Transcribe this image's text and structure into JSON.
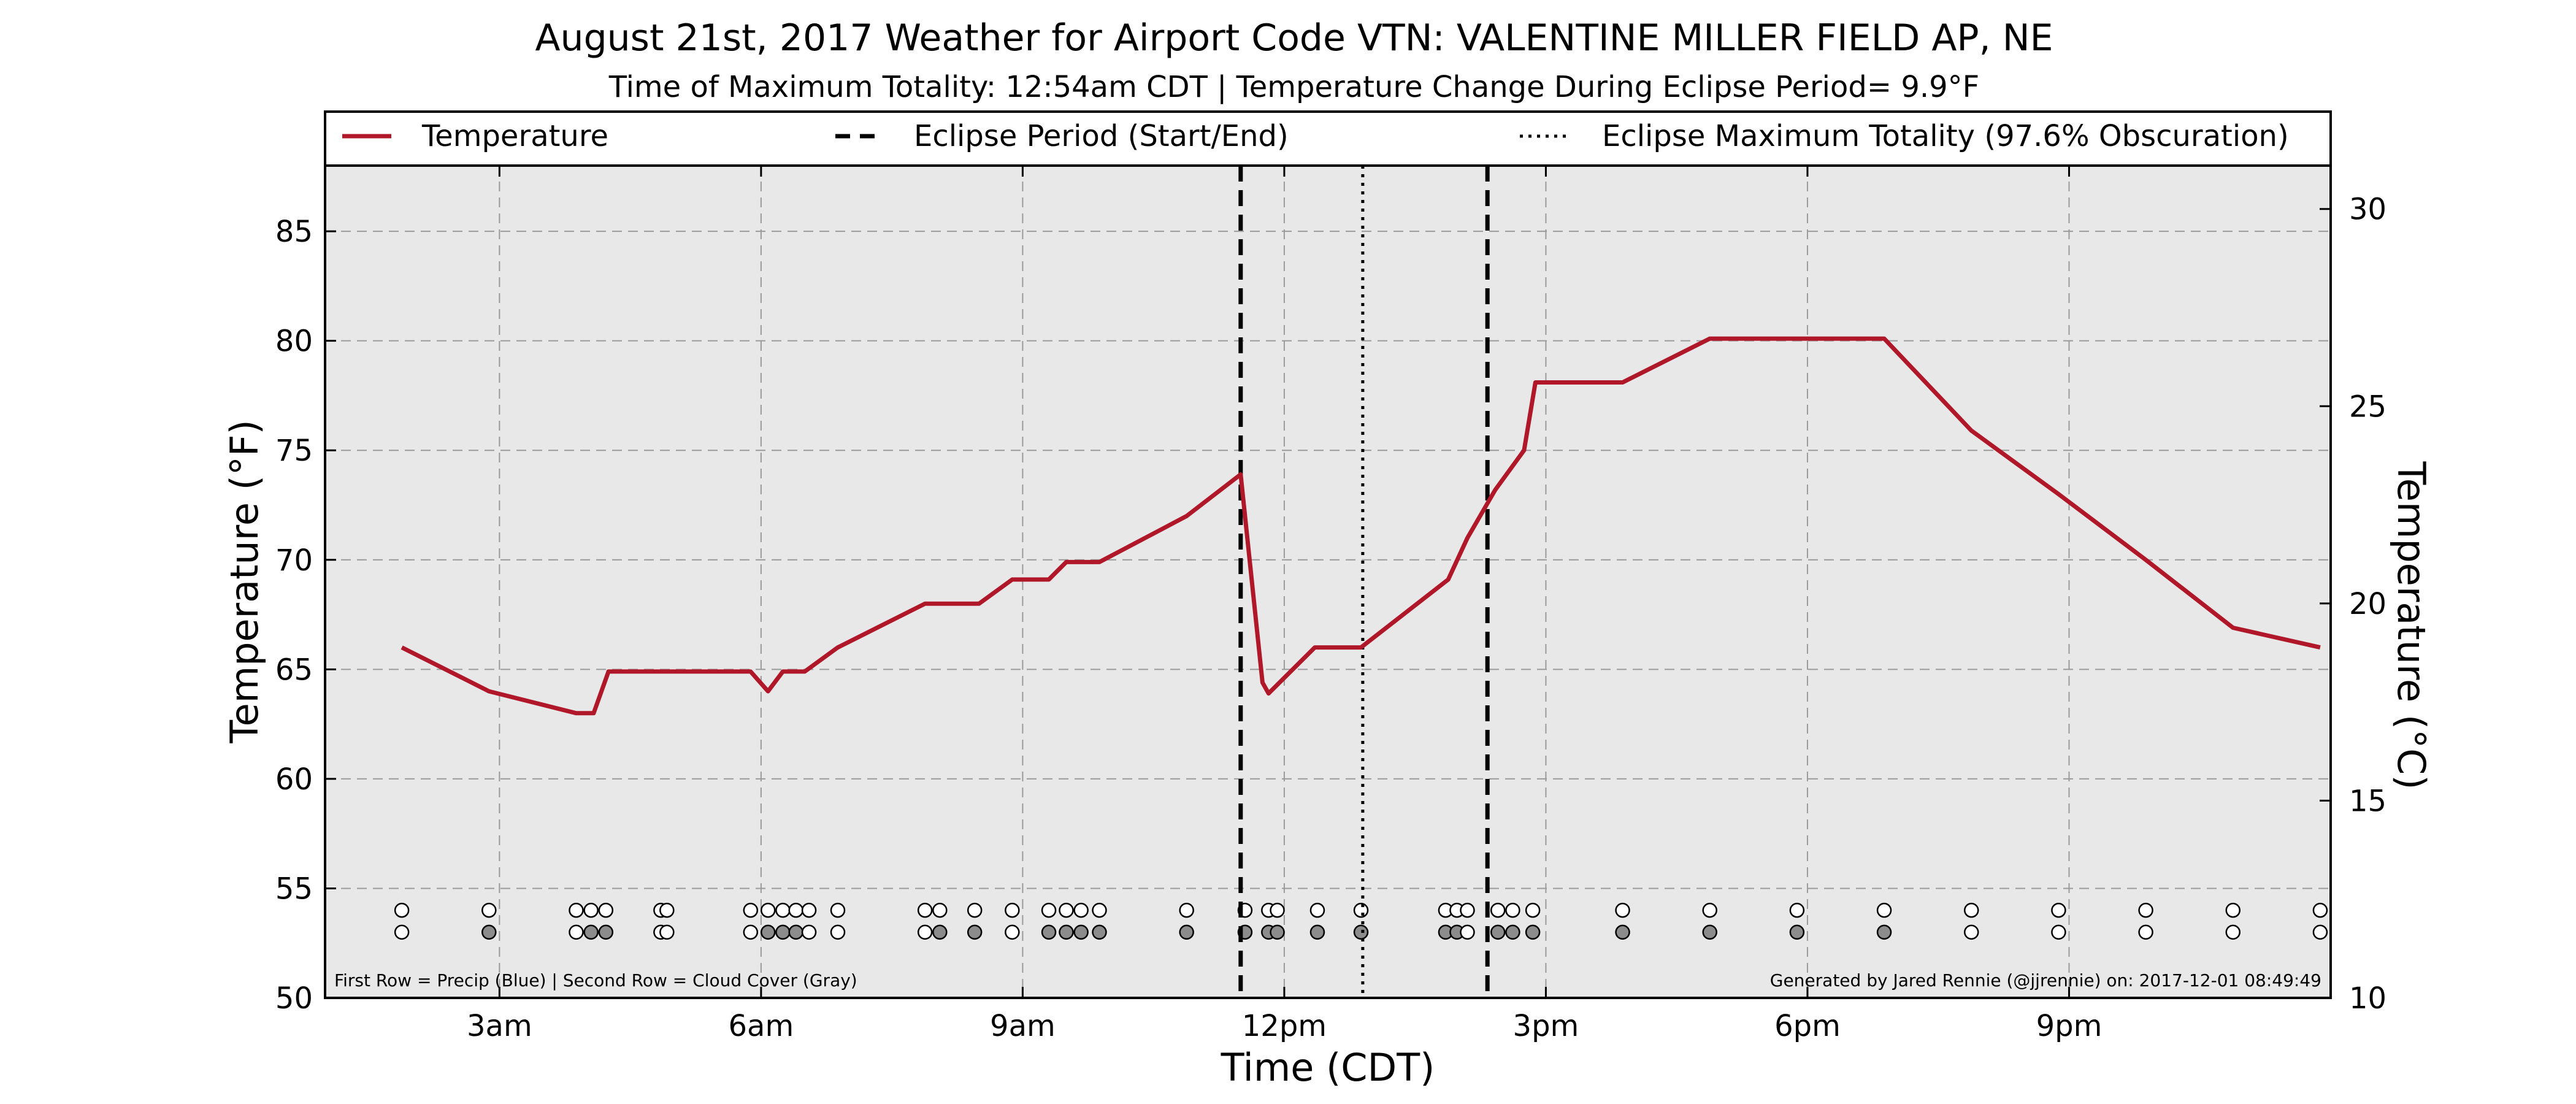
{
  "chart_data": {
    "type": "line",
    "title": "August 21st, 2017 Weather for Airport Code VTN: VALENTINE MILLER FIELD AP, NE",
    "subtitle": "Time of Maximum Totality: 12:54am CDT | Temperature Change During Eclipse Period= 9.9°F",
    "xlabel": "Time (CDT)",
    "ylabel": "Temperature (°F)",
    "ylabel_right": "Temperature (°C)",
    "xlim": [
      1.0,
      24.0
    ],
    "ylim": [
      50,
      88
    ],
    "ylim_right_c": [
      10,
      31.1
    ],
    "x_ticks": [
      {
        "x": 3,
        "label": "3am"
      },
      {
        "x": 6,
        "label": "6am"
      },
      {
        "x": 9,
        "label": "9am"
      },
      {
        "x": 12,
        "label": "12pm"
      },
      {
        "x": 15,
        "label": "3pm"
      },
      {
        "x": 18,
        "label": "6pm"
      },
      {
        "x": 21,
        "label": "9pm"
      }
    ],
    "y_ticks": [
      50,
      55,
      60,
      65,
      70,
      75,
      80,
      85
    ],
    "y_ticks_right": [
      10,
      15,
      20,
      25,
      30
    ],
    "grid": true,
    "legend_position": "top",
    "legend": [
      {
        "label": "Temperature",
        "style": "solid"
      },
      {
        "label": "Eclipse Period (Start/End)",
        "style": "dashed"
      },
      {
        "label": "Eclipse Maximum Totality (97.6% Obscuration)",
        "style": "dotted"
      }
    ],
    "series": [
      {
        "name": "Temperature",
        "color": "#b0182a",
        "x": [
          1.88,
          2.88,
          3.88,
          4.08,
          4.25,
          4.88,
          4.98,
          5.88,
          6.08,
          6.25,
          6.5,
          6.88,
          7.88,
          8.5,
          8.88,
          9.3,
          9.5,
          9.88,
          10.88,
          11.5,
          11.75,
          11.82,
          12.35,
          12.88,
          13.88,
          14.1,
          14.42,
          14.75,
          14.88,
          15.88,
          16.88,
          17.88,
          18.88,
          19.88,
          20.88,
          21.88,
          22.88,
          23.88
        ],
        "y": [
          66,
          64,
          63,
          63,
          64.9,
          64.9,
          64.9,
          64.9,
          64,
          64.9,
          64.9,
          66,
          68,
          68,
          69.1,
          69.1,
          69.9,
          69.9,
          72,
          73.9,
          64.4,
          63.9,
          66,
          66,
          69.1,
          71,
          73.2,
          75,
          78.1,
          78.1,
          80.1,
          80.1,
          80.1,
          75.9,
          73,
          70,
          66.9,
          66
        ]
      }
    ],
    "eclipse": {
      "start_x": 11.5,
      "end_x": 14.33,
      "max_x": 12.9
    },
    "obs_rows": {
      "precip_y": 54.0,
      "cloud_y": 53.0,
      "precip_x": [
        1.88,
        2.88,
        3.88,
        4.05,
        4.22,
        4.85,
        4.92,
        5.88,
        6.08,
        6.25,
        6.4,
        6.55,
        6.88,
        7.88,
        8.05,
        8.45,
        8.88,
        9.3,
        9.5,
        9.67,
        9.88,
        10.88,
        11.55,
        11.82,
        11.92,
        12.38,
        12.88,
        13.85,
        13.98,
        14.1,
        14.45,
        14.62,
        14.85,
        15.88,
        16.88,
        17.88,
        18.88,
        19.88,
        20.88,
        21.88,
        22.88,
        23.88
      ],
      "cloud": [
        {
          "x": 1.88,
          "filled": false
        },
        {
          "x": 2.88,
          "filled": true
        },
        {
          "x": 3.88,
          "filled": false
        },
        {
          "x": 4.05,
          "filled": true
        },
        {
          "x": 4.22,
          "filled": true
        },
        {
          "x": 4.85,
          "filled": false
        },
        {
          "x": 4.92,
          "filled": false
        },
        {
          "x": 5.88,
          "filled": false
        },
        {
          "x": 6.08,
          "filled": true
        },
        {
          "x": 6.25,
          "filled": true
        },
        {
          "x": 6.4,
          "filled": true
        },
        {
          "x": 6.55,
          "filled": false
        },
        {
          "x": 6.88,
          "filled": false
        },
        {
          "x": 7.88,
          "filled": false
        },
        {
          "x": 8.05,
          "filled": true
        },
        {
          "x": 8.45,
          "filled": true
        },
        {
          "x": 8.88,
          "filled": false
        },
        {
          "x": 9.3,
          "filled": true
        },
        {
          "x": 9.5,
          "filled": true
        },
        {
          "x": 9.67,
          "filled": true
        },
        {
          "x": 9.88,
          "filled": true
        },
        {
          "x": 10.88,
          "filled": true
        },
        {
          "x": 11.55,
          "filled": true
        },
        {
          "x": 11.82,
          "filled": true
        },
        {
          "x": 11.92,
          "filled": true
        },
        {
          "x": 12.38,
          "filled": true
        },
        {
          "x": 12.88,
          "filled": true
        },
        {
          "x": 13.85,
          "filled": true
        },
        {
          "x": 13.98,
          "filled": true
        },
        {
          "x": 14.1,
          "filled": false
        },
        {
          "x": 14.45,
          "filled": true
        },
        {
          "x": 14.62,
          "filled": true
        },
        {
          "x": 14.85,
          "filled": true
        },
        {
          "x": 15.88,
          "filled": true
        },
        {
          "x": 16.88,
          "filled": true
        },
        {
          "x": 17.88,
          "filled": true
        },
        {
          "x": 18.88,
          "filled": true
        },
        {
          "x": 19.88,
          "filled": false
        },
        {
          "x": 20.88,
          "filled": false
        },
        {
          "x": 21.88,
          "filled": false
        },
        {
          "x": 22.88,
          "filled": false
        },
        {
          "x": 23.88,
          "filled": false
        }
      ]
    },
    "annotations": {
      "bottom_left": "First Row = Precip (Blue) | Second Row = Cloud Cover (Gray)",
      "bottom_right": "Generated by Jared Rennie (@jjrennie) on: 2017-12-01 08:49:49"
    },
    "colors": {
      "plot_background": "#e8e8e8",
      "temperature_line": "#b0182a",
      "cloud_fill": "#8c8c8c",
      "grid": "#9a9a9a"
    }
  }
}
